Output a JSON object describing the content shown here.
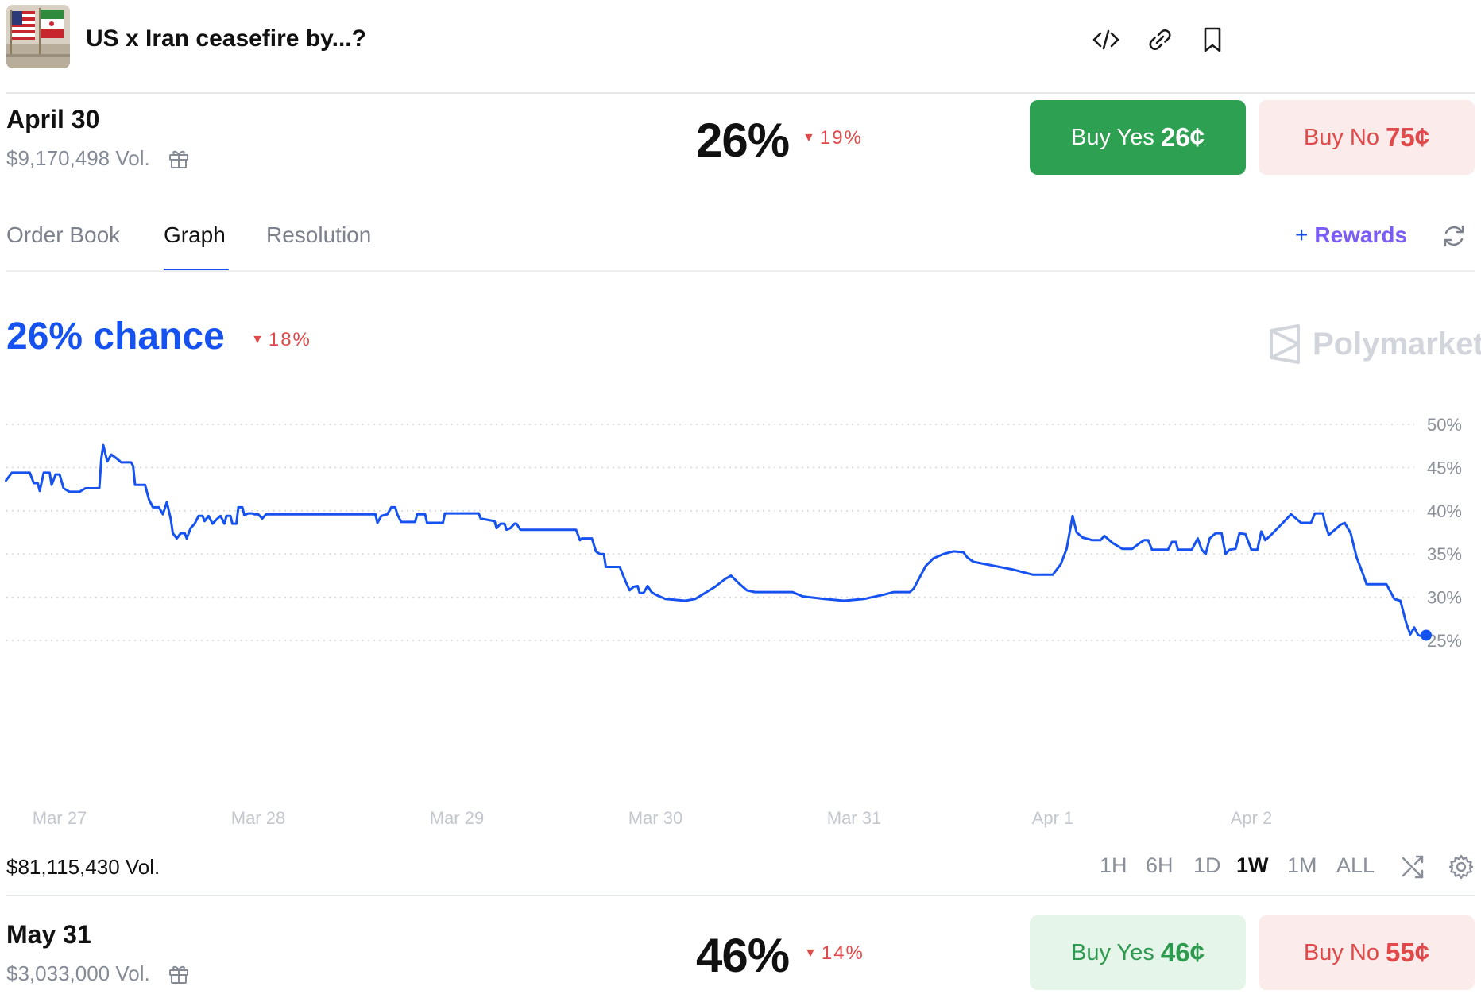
{
  "header": {
    "title": "US x Iran ceasefire by...?",
    "thumbnail_icon": "us-iran-flags-icon",
    "actions": [
      {
        "name": "embed-icon"
      },
      {
        "name": "link-icon"
      },
      {
        "name": "bookmark-icon"
      }
    ]
  },
  "outcomes": [
    {
      "name": "April 30",
      "volume": "$9,170,498 Vol.",
      "probability": "26%",
      "delta": "19%",
      "delta_direction": "down",
      "buy_yes": {
        "label": "Buy Yes",
        "price": "26¢"
      },
      "buy_no": {
        "label": "Buy No",
        "price": "75¢"
      }
    },
    {
      "name": "May 31",
      "volume": "$3,033,000 Vol.",
      "probability": "46%",
      "delta": "14%",
      "delta_direction": "down",
      "buy_yes": {
        "label": "Buy Yes",
        "price": "46¢"
      },
      "buy_no": {
        "label": "Buy No",
        "price": "55¢"
      }
    }
  ],
  "tabs": [
    {
      "label": "Order Book",
      "active": false
    },
    {
      "label": "Graph",
      "active": true
    },
    {
      "label": "Resolution",
      "active": false
    }
  ],
  "rewards": {
    "plus": "+",
    "label": "Rewards"
  },
  "chart_header": {
    "chance": "26% chance",
    "delta": "18%",
    "brand": "Polymarket"
  },
  "footer": {
    "total_volume": "$81,115,430 Vol.",
    "ranges": [
      {
        "label": "1H",
        "active": false
      },
      {
        "label": "6H",
        "active": false
      },
      {
        "label": "1D",
        "active": false
      },
      {
        "label": "1W",
        "active": true
      },
      {
        "label": "1M",
        "active": false
      },
      {
        "label": "ALL",
        "active": false
      }
    ]
  },
  "colors": {
    "accent_blue": "#1652f0",
    "green": "#2ea052",
    "red": "#e04a4a",
    "reward_purple": "#7b5cf5"
  },
  "chart_data": {
    "type": "line",
    "x_unit": "days since Mar 27",
    "xticks": [
      "Mar 27",
      "Mar 28",
      "Mar 29",
      "Mar 30",
      "Mar 31",
      "Apr 1",
      "Apr 2"
    ],
    "ytick_labels": [
      "25%",
      "30%",
      "35%",
      "40%",
      "45%",
      "50%"
    ],
    "ylim": [
      25,
      50
    ],
    "grid": true,
    "series": [
      {
        "color": "#1652f0",
        "points": [
          [
            -0.27,
            43.5
          ],
          [
            -0.24,
            44.4
          ],
          [
            -0.15,
            44.4
          ],
          [
            -0.13,
            43.2
          ],
          [
            -0.11,
            43.2
          ],
          [
            -0.1,
            42.3
          ],
          [
            -0.08,
            44.4
          ],
          [
            -0.05,
            44.4
          ],
          [
            -0.04,
            43.0
          ],
          [
            -0.03,
            43.6
          ],
          [
            -0.02,
            44.2
          ],
          [
            0.0,
            44.2
          ],
          [
            0.02,
            42.6
          ],
          [
            0.05,
            42.2
          ],
          [
            0.1,
            42.2
          ],
          [
            0.13,
            42.6
          ],
          [
            0.2,
            42.6
          ],
          [
            0.21,
            46.0
          ],
          [
            0.22,
            47.6
          ],
          [
            0.24,
            45.7
          ],
          [
            0.26,
            46.5
          ],
          [
            0.29,
            46.0
          ],
          [
            0.31,
            45.6
          ],
          [
            0.36,
            45.6
          ],
          [
            0.37,
            45.2
          ],
          [
            0.38,
            43.0
          ],
          [
            0.43,
            43.0
          ],
          [
            0.45,
            41.3
          ],
          [
            0.47,
            40.4
          ],
          [
            0.5,
            40.4
          ],
          [
            0.52,
            39.6
          ],
          [
            0.54,
            41.0
          ],
          [
            0.56,
            39.0
          ],
          [
            0.57,
            37.4
          ],
          [
            0.59,
            36.8
          ],
          [
            0.61,
            37.4
          ],
          [
            0.63,
            37.4
          ],
          [
            0.64,
            36.8
          ],
          [
            0.66,
            38.0
          ],
          [
            0.68,
            38.5
          ],
          [
            0.7,
            39.4
          ],
          [
            0.72,
            39.4
          ],
          [
            0.73,
            38.8
          ],
          [
            0.75,
            39.4
          ],
          [
            0.77,
            38.5
          ],
          [
            0.79,
            39.0
          ],
          [
            0.81,
            39.4
          ],
          [
            0.83,
            38.5
          ],
          [
            0.84,
            39.4
          ],
          [
            0.86,
            39.4
          ],
          [
            0.87,
            38.5
          ],
          [
            0.89,
            38.5
          ],
          [
            0.9,
            40.4
          ],
          [
            0.92,
            40.4
          ],
          [
            0.93,
            39.5
          ],
          [
            0.95,
            39.7
          ],
          [
            0.97,
            39.7
          ],
          [
            0.98,
            39.6
          ],
          [
            1.0,
            39.6
          ],
          [
            1.02,
            39.1
          ],
          [
            1.04,
            39.6
          ],
          [
            1.5,
            39.6
          ],
          [
            1.59,
            39.6
          ],
          [
            1.6,
            38.6
          ],
          [
            1.62,
            39.4
          ],
          [
            1.65,
            39.6
          ],
          [
            1.67,
            40.4
          ],
          [
            1.69,
            40.4
          ],
          [
            1.7,
            39.6
          ],
          [
            1.72,
            38.7
          ],
          [
            1.79,
            38.7
          ],
          [
            1.8,
            39.6
          ],
          [
            1.82,
            39.6
          ],
          [
            1.84,
            39.6
          ],
          [
            1.85,
            38.6
          ],
          [
            1.93,
            38.6
          ],
          [
            1.94,
            39.7
          ],
          [
            1.96,
            39.7
          ],
          [
            2.11,
            39.7
          ],
          [
            2.12,
            39.1
          ],
          [
            2.19,
            38.8
          ],
          [
            2.2,
            38.0
          ],
          [
            2.22,
            38.5
          ],
          [
            2.24,
            38.5
          ],
          [
            2.25,
            37.8
          ],
          [
            2.27,
            38.0
          ],
          [
            2.29,
            38.5
          ],
          [
            2.3,
            38.5
          ],
          [
            2.32,
            37.8
          ],
          [
            2.4,
            37.8
          ],
          [
            2.6,
            37.8
          ],
          [
            2.62,
            36.6
          ],
          [
            2.63,
            36.8
          ],
          [
            2.68,
            36.8
          ],
          [
            2.7,
            35.3
          ],
          [
            2.72,
            35.0
          ],
          [
            2.74,
            35.0
          ],
          [
            2.75,
            33.5
          ],
          [
            2.82,
            33.5
          ],
          [
            2.85,
            31.8
          ],
          [
            2.87,
            30.8
          ],
          [
            2.89,
            31.2
          ],
          [
            2.91,
            31.3
          ],
          [
            2.92,
            30.5
          ],
          [
            2.94,
            30.5
          ],
          [
            2.96,
            31.3
          ],
          [
            2.98,
            30.6
          ],
          [
            3.0,
            30.3
          ],
          [
            3.05,
            29.8
          ],
          [
            3.15,
            29.6
          ],
          [
            3.2,
            29.8
          ],
          [
            3.3,
            31.2
          ],
          [
            3.35,
            32.1
          ],
          [
            3.38,
            32.5
          ],
          [
            3.42,
            31.6
          ],
          [
            3.46,
            30.8
          ],
          [
            3.5,
            30.6
          ],
          [
            3.6,
            30.6
          ],
          [
            3.69,
            30.6
          ],
          [
            3.74,
            30.1
          ],
          [
            3.85,
            29.8
          ],
          [
            3.95,
            29.6
          ],
          [
            4.05,
            29.8
          ],
          [
            4.15,
            30.3
          ],
          [
            4.2,
            30.6
          ],
          [
            4.28,
            30.6
          ],
          [
            4.3,
            31.0
          ],
          [
            4.36,
            33.6
          ],
          [
            4.4,
            34.5
          ],
          [
            4.45,
            35.0
          ],
          [
            4.5,
            35.3
          ],
          [
            4.55,
            35.2
          ],
          [
            4.57,
            34.6
          ],
          [
            4.6,
            34.1
          ],
          [
            4.8,
            33.2
          ],
          [
            4.9,
            32.6
          ],
          [
            5.0,
            32.6
          ],
          [
            5.04,
            33.8
          ],
          [
            5.07,
            35.6
          ],
          [
            5.1,
            39.4
          ],
          [
            5.12,
            37.5
          ],
          [
            5.15,
            36.9
          ],
          [
            5.2,
            36.6
          ],
          [
            5.24,
            36.6
          ],
          [
            5.26,
            37.1
          ],
          [
            5.3,
            36.3
          ],
          [
            5.35,
            35.6
          ],
          [
            5.4,
            35.6
          ],
          [
            5.44,
            36.3
          ],
          [
            5.46,
            36.6
          ],
          [
            5.48,
            36.6
          ],
          [
            5.5,
            35.5
          ],
          [
            5.58,
            35.5
          ],
          [
            5.6,
            36.4
          ],
          [
            5.62,
            36.4
          ],
          [
            5.63,
            35.5
          ],
          [
            5.7,
            35.5
          ],
          [
            5.73,
            36.8
          ],
          [
            5.75,
            35.5
          ],
          [
            5.77,
            35.0
          ],
          [
            5.79,
            36.8
          ],
          [
            5.82,
            37.4
          ],
          [
            5.85,
            37.4
          ],
          [
            5.87,
            35.0
          ],
          [
            5.89,
            35.5
          ],
          [
            5.92,
            35.6
          ],
          [
            5.94,
            37.4
          ],
          [
            5.97,
            37.3
          ],
          [
            6.0,
            35.5
          ],
          [
            6.03,
            35.5
          ],
          [
            6.05,
            37.6
          ],
          [
            6.07,
            36.6
          ],
          [
            6.09,
            37.0
          ],
          [
            6.15,
            38.4
          ],
          [
            6.2,
            39.6
          ],
          [
            6.25,
            38.6
          ],
          [
            6.3,
            38.6
          ],
          [
            6.32,
            39.7
          ],
          [
            6.36,
            39.7
          ],
          [
            6.37,
            38.6
          ],
          [
            6.39,
            37.2
          ],
          [
            6.42,
            37.8
          ],
          [
            6.45,
            38.4
          ],
          [
            6.47,
            38.6
          ],
          [
            6.5,
            37.4
          ],
          [
            6.53,
            34.6
          ],
          [
            6.56,
            32.8
          ],
          [
            6.58,
            31.5
          ],
          [
            6.62,
            31.5
          ],
          [
            6.68,
            31.5
          ],
          [
            6.72,
            29.8
          ],
          [
            6.75,
            29.6
          ],
          [
            6.78,
            27.0
          ],
          [
            6.8,
            25.7
          ],
          [
            6.82,
            26.5
          ],
          [
            6.84,
            25.6
          ],
          [
            6.86,
            25.5
          ],
          [
            6.88,
            25.6
          ]
        ]
      }
    ]
  }
}
